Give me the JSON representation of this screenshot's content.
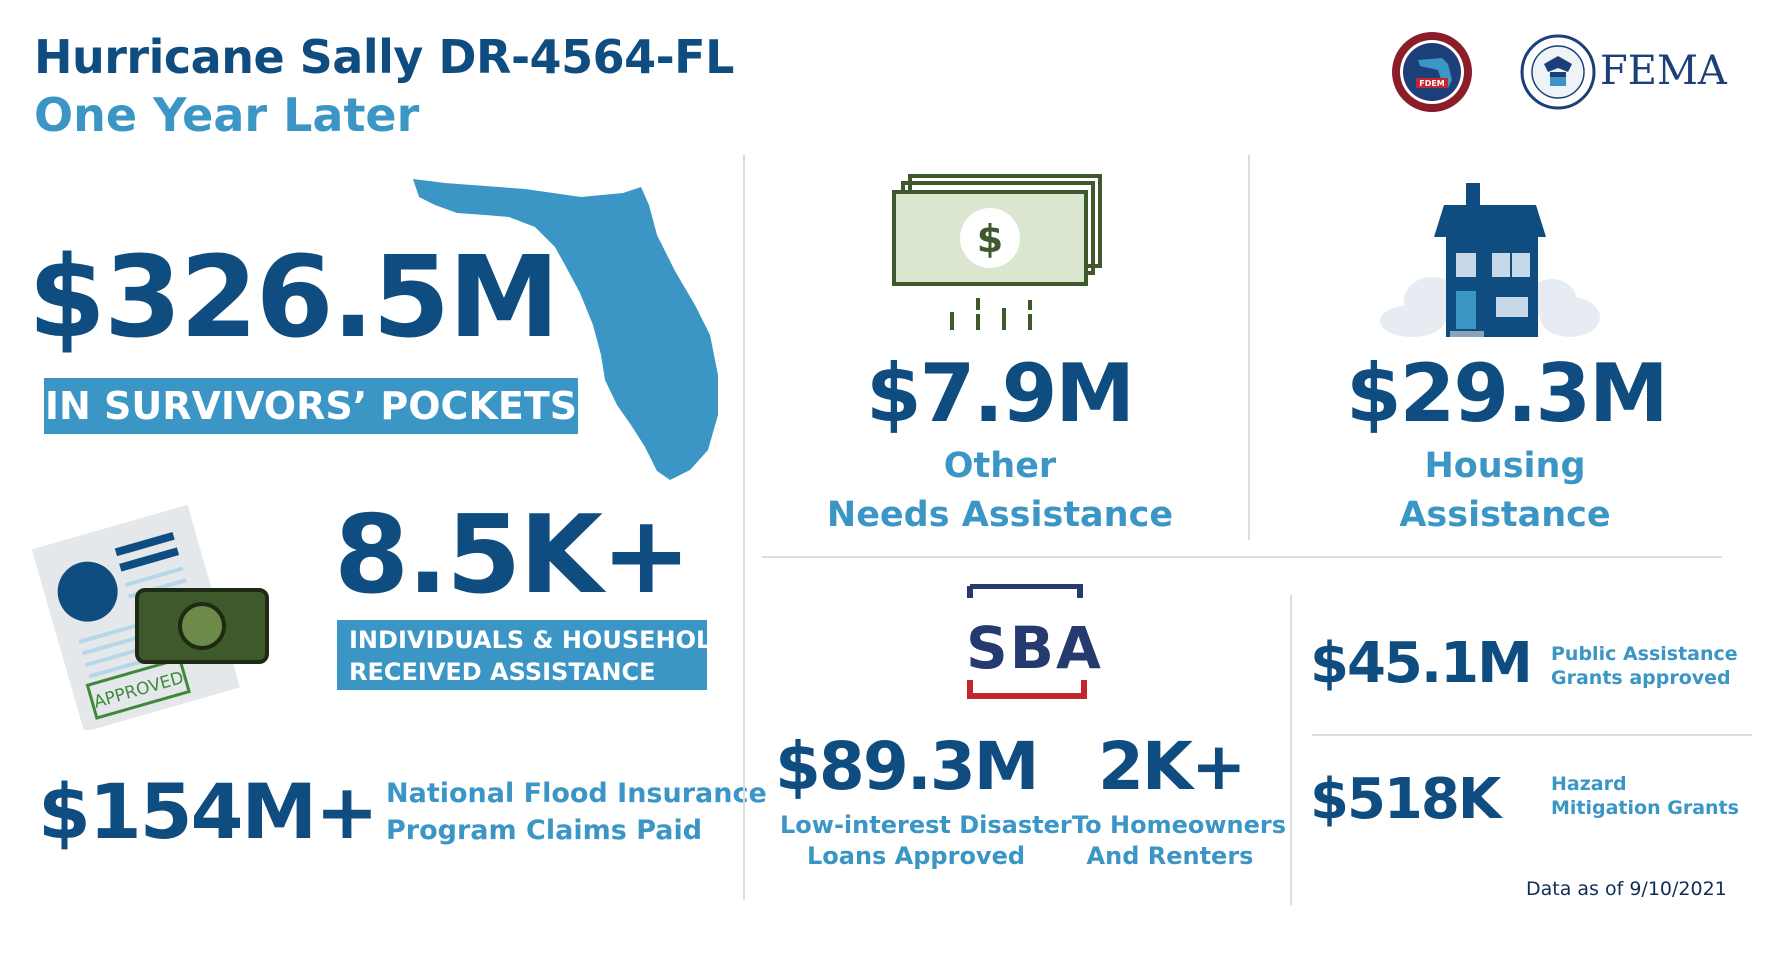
{
  "header": {
    "title": "Hurricane Sally DR-4564-FL",
    "subtitle": "One Year Later"
  },
  "logos": {
    "fdem_text": "FDEM",
    "fema_text": "FEMA"
  },
  "survivors": {
    "amount": "$326.5M",
    "label": "IN SURVIVORS’ POCKETS"
  },
  "individuals": {
    "amount": "8.5K+",
    "label_line1": "INDIVIDUALS & HOUSEHOLDS",
    "label_line2": "RECEIVED ASSISTANCE",
    "stamp_text": "APPROVED"
  },
  "nfip": {
    "amount": "$154M+",
    "label_line1": "National Flood Insurance",
    "label_line2": "Program Claims Paid"
  },
  "other_needs": {
    "amount": "$7.9M",
    "label_line1": "Other",
    "label_line2": "Needs Assistance",
    "icon_symbol": "$"
  },
  "housing": {
    "amount": "$29.3M",
    "label_line1": "Housing",
    "label_line2": "Assistance"
  },
  "sba": {
    "logo_text": "SBA",
    "loans_amount": "$89.3M",
    "loans_label_line1": "Low-interest Disaster",
    "loans_label_line2": "Loans Approved",
    "homeowners_amount": "2K+",
    "homeowners_label_line1": "To Homeowners",
    "homeowners_label_line2": "And Renters"
  },
  "public_assistance": {
    "amount": "$45.1M",
    "label_line1": "Public Assistance",
    "label_line2": "Grants approved"
  },
  "hazard": {
    "amount": "$518K",
    "label_line1": "Hazard",
    "label_line2": "Mitigation Grants"
  },
  "footer": {
    "data_as_of": "Data as of 9/10/2021"
  },
  "colors": {
    "navy": "#0f4c7f",
    "accent_blue": "#3b96c6",
    "money_green": "#3e5a2c",
    "sba_red": "#c4262e",
    "sba_navy": "#253a6e"
  }
}
